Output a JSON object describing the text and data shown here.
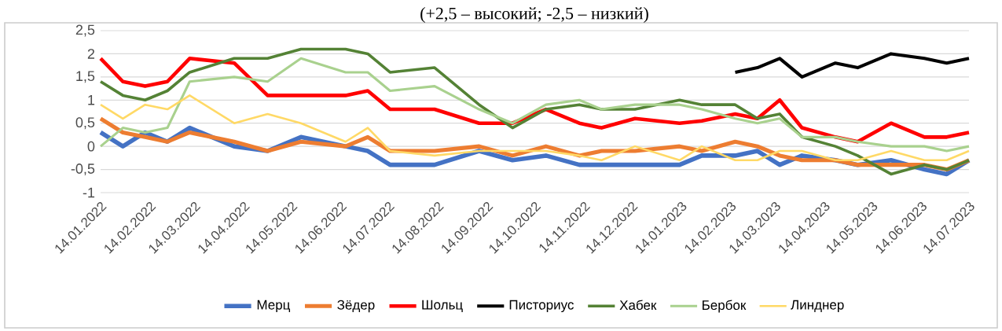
{
  "chart_data": {
    "type": "line",
    "title": "(+2,5 – высокий; -2,5 – низкий)",
    "x": [
      "2022-01-14",
      "2022-01-28",
      "2022-02-11",
      "2022-02-25",
      "2022-03-11",
      "2022-04-08",
      "2022-04-29",
      "2022-05-20",
      "2022-06-17",
      "2022-07-01",
      "2022-07-15",
      "2022-08-12",
      "2022-09-09",
      "2022-09-30",
      "2022-10-21",
      "2022-11-11",
      "2022-11-25",
      "2022-12-16",
      "2023-01-13",
      "2023-01-27",
      "2023-02-17",
      "2023-03-03",
      "2023-03-17",
      "2023-03-31",
      "2023-04-21",
      "2023-05-05",
      "2023-05-26",
      "2023-06-16",
      "2023-06-30",
      "2023-07-14"
    ],
    "series": [
      {
        "name": "Мерц",
        "color": "#4472c4",
        "values": [
          0.3,
          0.0,
          0.3,
          0.1,
          0.4,
          0.0,
          -0.1,
          0.2,
          0.0,
          -0.1,
          -0.4,
          -0.4,
          -0.1,
          -0.3,
          -0.2,
          -0.4,
          -0.4,
          -0.4,
          -0.4,
          -0.2,
          -0.2,
          -0.1,
          -0.4,
          -0.2,
          -0.3,
          -0.4,
          -0.3,
          -0.5,
          -0.6,
          -0.3
        ]
      },
      {
        "name": "Зёдер",
        "color": "#ed7d31",
        "values": [
          0.6,
          0.3,
          0.2,
          0.1,
          0.3,
          0.1,
          -0.1,
          0.1,
          0.0,
          0.2,
          -0.1,
          -0.1,
          0.0,
          -0.2,
          0.0,
          -0.2,
          -0.1,
          -0.1,
          0.0,
          -0.1,
          0.1,
          0.0,
          -0.2,
          -0.3,
          -0.3,
          -0.4,
          -0.4,
          -0.4,
          -0.5,
          -0.3
        ]
      },
      {
        "name": "Шольц",
        "color": "#ff0000",
        "values": [
          1.9,
          1.4,
          1.3,
          1.4,
          1.9,
          1.8,
          1.1,
          1.1,
          1.1,
          1.2,
          0.8,
          0.8,
          0.5,
          0.5,
          0.8,
          0.5,
          0.4,
          0.6,
          0.5,
          0.55,
          0.7,
          0.6,
          1.0,
          0.4,
          0.2,
          0.1,
          0.5,
          0.2,
          0.2,
          0.3
        ]
      },
      {
        "name": "Писториус",
        "color": "#000000",
        "values": [
          null,
          null,
          null,
          null,
          null,
          null,
          null,
          null,
          null,
          null,
          null,
          null,
          null,
          null,
          null,
          null,
          null,
          null,
          null,
          null,
          1.6,
          1.7,
          1.9,
          1.5,
          1.8,
          1.7,
          2.0,
          1.9,
          1.8,
          1.9
        ]
      },
      {
        "name": "Хабек",
        "color": "#548235",
        "values": [
          1.4,
          1.1,
          1.0,
          1.2,
          1.6,
          1.9,
          1.9,
          2.1,
          2.1,
          2.0,
          1.6,
          1.7,
          0.9,
          0.4,
          0.8,
          0.9,
          0.8,
          0.8,
          1.0,
          0.9,
          0.9,
          0.6,
          0.7,
          0.2,
          0.0,
          -0.2,
          -0.6,
          -0.4,
          -0.5,
          -0.3
        ]
      },
      {
        "name": "Бербок",
        "color": "#a9d18e",
        "values": [
          0.0,
          0.4,
          0.3,
          0.4,
          1.4,
          1.5,
          1.4,
          1.9,
          1.6,
          1.6,
          1.2,
          1.3,
          0.8,
          0.5,
          0.9,
          1.0,
          0.8,
          0.9,
          0.9,
          0.8,
          0.6,
          0.5,
          0.6,
          0.2,
          0.2,
          0.1,
          0.0,
          0.0,
          -0.1,
          0.0
        ]
      },
      {
        "name": "Линднер",
        "color": "#ffd966",
        "values": [
          0.9,
          0.6,
          0.9,
          0.8,
          1.1,
          0.5,
          0.7,
          0.5,
          0.1,
          0.4,
          -0.1,
          -0.2,
          -0.1,
          -0.1,
          -0.1,
          -0.2,
          -0.3,
          0.0,
          -0.3,
          0.0,
          -0.3,
          -0.3,
          -0.1,
          -0.1,
          -0.3,
          -0.3,
          -0.1,
          -0.3,
          -0.3,
          -0.1
        ]
      }
    ],
    "xlim": [
      "2022-01-14",
      "2023-07-14"
    ],
    "xticks": [
      {
        "value": "2022-01-14",
        "label": "14.01.2022"
      },
      {
        "value": "2022-02-14",
        "label": "14.02.2022"
      },
      {
        "value": "2022-03-14",
        "label": "14.03.2022"
      },
      {
        "value": "2022-04-14",
        "label": "14.04.2022"
      },
      {
        "value": "2022-05-14",
        "label": "14.05.2022"
      },
      {
        "value": "2022-06-14",
        "label": "14.06.2022"
      },
      {
        "value": "2022-07-14",
        "label": "14.07.2022"
      },
      {
        "value": "2022-08-14",
        "label": "14.08.2022"
      },
      {
        "value": "2022-09-14",
        "label": "14.09.2022"
      },
      {
        "value": "2022-10-14",
        "label": "14.10.2022"
      },
      {
        "value": "2022-11-14",
        "label": "14.11.2022"
      },
      {
        "value": "2022-12-14",
        "label": "14.12.2022"
      },
      {
        "value": "2023-01-14",
        "label": "14.01.2023"
      },
      {
        "value": "2023-02-14",
        "label": "14.02.2023"
      },
      {
        "value": "2023-03-14",
        "label": "14.03.2023"
      },
      {
        "value": "2023-04-14",
        "label": "14.04.2023"
      },
      {
        "value": "2023-05-14",
        "label": "14.05.2023"
      },
      {
        "value": "2023-06-14",
        "label": "14.06.2023"
      },
      {
        "value": "2023-07-14",
        "label": "14.07.2023"
      }
    ],
    "ylim": [
      -1,
      2.5
    ],
    "yticks": [
      -1,
      {
        "value": -0.5,
        "label": "-0,5"
      },
      0,
      {
        "value": 0.5,
        "label": "0,5"
      },
      1,
      {
        "value": 1.5,
        "label": "1,5"
      },
      2,
      {
        "value": 2.5,
        "label": "2,5"
      }
    ],
    "grid": "y",
    "legend": "bottom",
    "line_style": "solid"
  }
}
